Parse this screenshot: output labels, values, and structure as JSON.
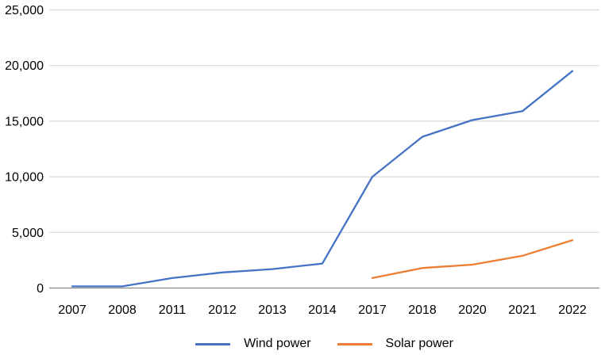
{
  "chart_data": {
    "type": "line",
    "title": "",
    "xlabel": "",
    "ylabel": "",
    "categories": [
      "2007",
      "2008",
      "2011",
      "2012",
      "2013",
      "2014",
      "2017",
      "2018",
      "2020",
      "2021",
      "2022"
    ],
    "series": [
      {
        "name": "Wind power",
        "color": "#4472C4",
        "values": [
          150,
          150,
          900,
          1400,
          1700,
          2200,
          10000,
          13600,
          15100,
          15900,
          19500
        ]
      },
      {
        "name": "Solar power",
        "color": "#ED7D31",
        "values": [
          null,
          null,
          null,
          null,
          null,
          null,
          900,
          1800,
          2100,
          2900,
          4300
        ]
      }
    ],
    "ylim": [
      0,
      25000
    ],
    "yticks": [
      {
        "value": 0,
        "label": "0"
      },
      {
        "value": 5000,
        "label": "5,000"
      },
      {
        "value": 10000,
        "label": "10,000"
      },
      {
        "value": 15000,
        "label": "15,000"
      },
      {
        "value": 20000,
        "label": "20,000"
      },
      {
        "value": 25000,
        "label": "25,000"
      }
    ],
    "grid": "horizontal",
    "legend_position": "bottom-center"
  },
  "colors": {
    "gridline": "#D9D9D9",
    "axis": "#8A8A8A",
    "text": "#000000",
    "background": "#FFFFFF"
  }
}
